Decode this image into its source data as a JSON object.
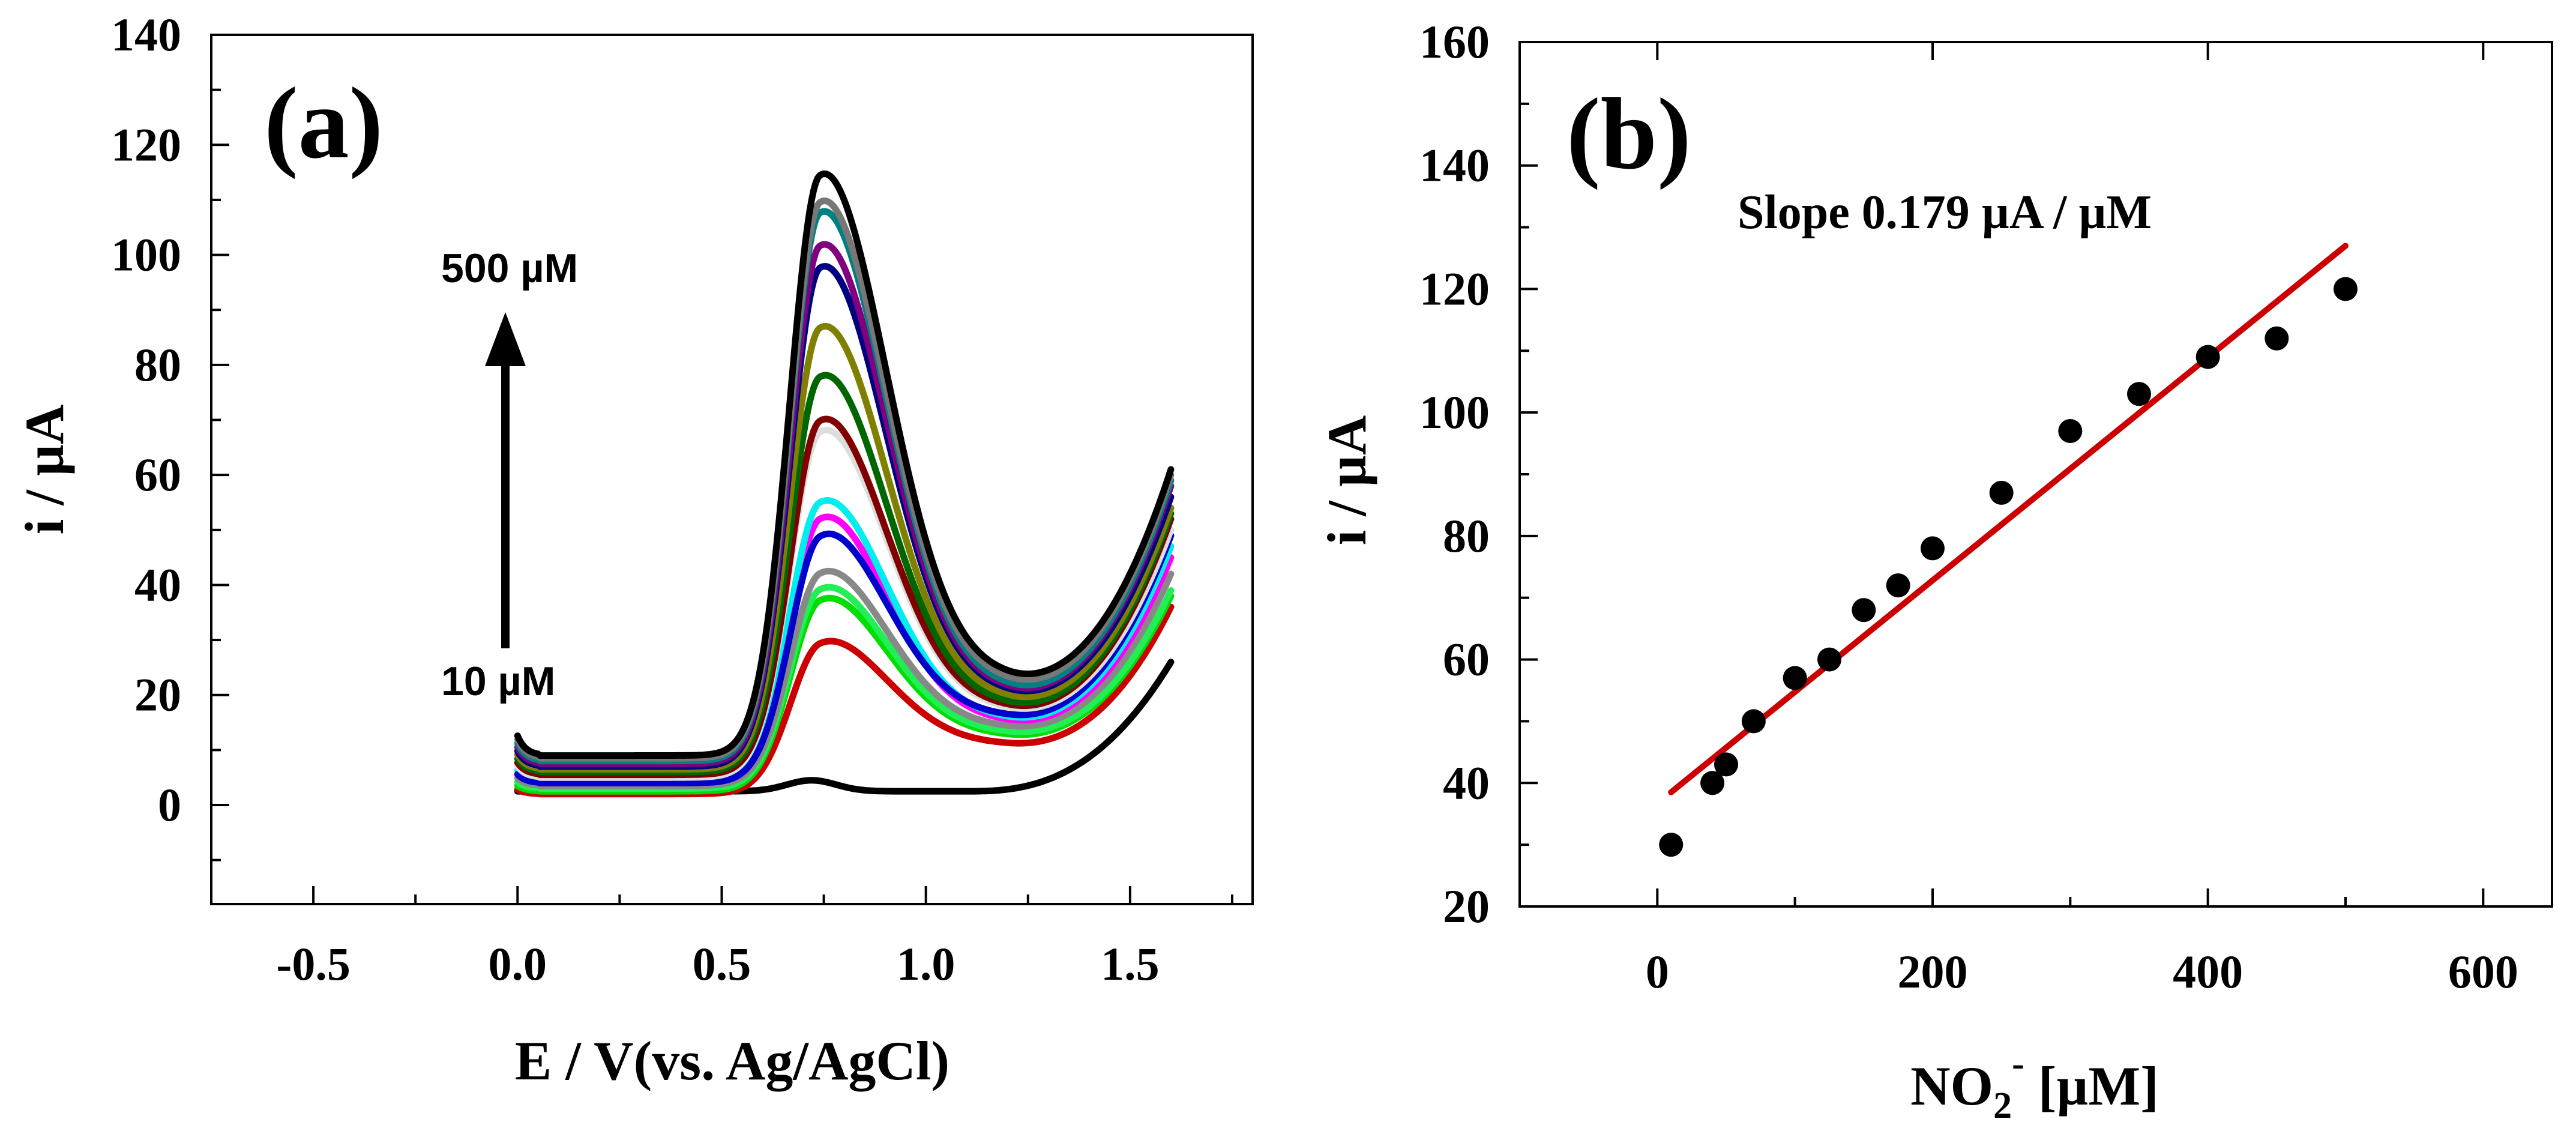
{
  "chart_data": [
    {
      "panel_label": "(a)",
      "type": "line",
      "xlabel": "E / V(vs. Ag/AgCl)",
      "ylabel": "i / µA",
      "xlim": [
        -0.75,
        1.8
      ],
      "ylim": [
        -18,
        140
      ],
      "xticks": [
        -0.5,
        0.0,
        0.5,
        1.0,
        1.5
      ],
      "yticks": [
        0,
        20,
        40,
        60,
        80,
        100,
        120,
        140
      ],
      "grid": false,
      "annotations": {
        "top_label": "500 µM",
        "bottom_label": "10 µM"
      },
      "series": [
        {
          "color": "#000000",
          "baseline": 2.5,
          "peak": 4.5,
          "min": 3.5,
          "end": 26
        },
        {
          "color": "#cc0000",
          "baseline": 2.0,
          "peak": 31,
          "min": 11,
          "end": 36
        },
        {
          "color": "#00dd00",
          "baseline": 2.5,
          "peak": 39,
          "min": 12.5,
          "end": 38
        },
        {
          "color": "#22ee55",
          "baseline": 3.0,
          "peak": 41,
          "min": 13,
          "end": 39
        },
        {
          "color": "#888888",
          "baseline": 3.5,
          "peak": 44,
          "min": 14,
          "end": 42
        },
        {
          "color": "#ff00ff",
          "baseline": 4.0,
          "peak": 54,
          "min": 15,
          "end": 45
        },
        {
          "color": "#00eeee",
          "baseline": 4.5,
          "peak": 57,
          "min": 15.5,
          "end": 47
        },
        {
          "color": "#0000cc",
          "baseline": 4.0,
          "peak": 51,
          "min": 16,
          "end": 49
        },
        {
          "color": "#dddddd",
          "baseline": 5.0,
          "peak": 70,
          "min": 17,
          "end": 50
        },
        {
          "color": "#800000",
          "baseline": 5.5,
          "peak": 72,
          "min": 17.5,
          "end": 52
        },
        {
          "color": "#006600",
          "baseline": 6.0,
          "peak": 80,
          "min": 18,
          "end": 53
        },
        {
          "color": "#808000",
          "baseline": 6.5,
          "peak": 89,
          "min": 19,
          "end": 54
        },
        {
          "color": "#000080",
          "baseline": 7.0,
          "peak": 100,
          "min": 20,
          "end": 56
        },
        {
          "color": "#800080",
          "baseline": 7.5,
          "peak": 104,
          "min": 20.5,
          "end": 58
        },
        {
          "color": "#008080",
          "baseline": 8.0,
          "peak": 110,
          "min": 21,
          "end": 59
        },
        {
          "color": "#777777",
          "baseline": 8.5,
          "peak": 112,
          "min": 22,
          "end": 60
        },
        {
          "color": "#000000",
          "baseline": 9.0,
          "peak": 117,
          "min": 23,
          "end": 61
        }
      ]
    },
    {
      "panel_label": "(b)",
      "type": "scatter",
      "annotation": "Slope 0.179 µA / µM",
      "xlabel": "NO2- [µM]",
      "xlabel_parts": {
        "base": "NO",
        "sub": "2",
        "sup": "-",
        "rest": " [µM]"
      },
      "ylabel": "i / µA",
      "xlim": [
        -100,
        650
      ],
      "ylim": [
        20,
        160
      ],
      "xticks": [
        0,
        200,
        400,
        600
      ],
      "yticks": [
        20,
        40,
        60,
        80,
        100,
        120,
        140,
        160
      ],
      "grid": false,
      "points": {
        "x": [
          10,
          40,
          50,
          70,
          100,
          125,
          150,
          175,
          200,
          250,
          300,
          350,
          400,
          450,
          500
        ],
        "y": [
          30,
          40,
          43,
          50,
          57,
          60,
          68,
          72,
          78,
          87,
          97,
          103,
          109,
          112,
          120
        ]
      },
      "fit_line": {
        "color": "#cc0000",
        "x": [
          10,
          500
        ],
        "y": [
          38.5,
          127
        ]
      }
    }
  ]
}
